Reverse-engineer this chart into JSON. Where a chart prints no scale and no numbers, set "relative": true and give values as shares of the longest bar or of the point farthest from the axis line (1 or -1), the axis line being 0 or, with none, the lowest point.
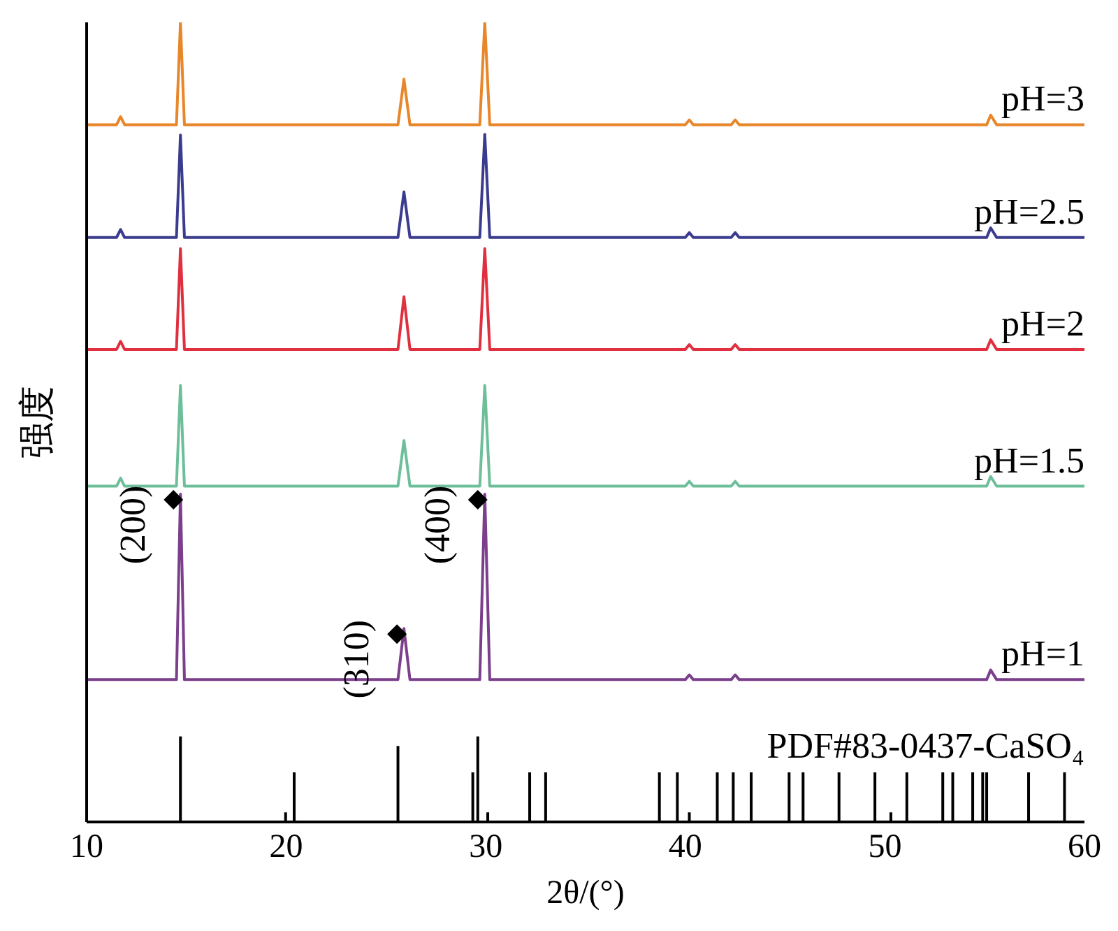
{
  "chart_data": {
    "type": "line",
    "relative": true,
    "xlabel": "2θ/(°)",
    "ylabel": "强度",
    "xlim": [
      10,
      60
    ],
    "xticks": [
      10,
      20,
      30,
      40,
      50,
      60
    ],
    "legend": false,
    "grid": false,
    "marker": "none",
    "line_style": "solid",
    "series": [
      {
        "name": "pH=3",
        "color": "#e8862a",
        "x": [
          10,
          11.5,
          11.7,
          11.9,
          14.5,
          14.7,
          14.9,
          25.6,
          25.9,
          26.2,
          29.7,
          29.95,
          30.2,
          40,
          40.2,
          40.4,
          42.3,
          42.5,
          42.7,
          55.1,
          55.3,
          55.6,
          60
        ],
        "values": [
          0.872,
          0.872,
          0.882,
          0.872,
          0.872,
          1,
          0.872,
          0.872,
          0.929,
          0.872,
          0.872,
          1,
          0.872,
          0.872,
          0.878,
          0.872,
          0.872,
          0.878,
          0.872,
          0.872,
          0.884,
          0.872,
          0.872
        ]
      },
      {
        "name": "pH=2.5",
        "color": "#3b3b8f",
        "x": [
          10,
          11.5,
          11.7,
          11.9,
          14.5,
          14.7,
          14.9,
          25.6,
          25.9,
          26.2,
          29.7,
          29.95,
          30.2,
          40,
          40.2,
          40.4,
          42.3,
          42.5,
          42.7,
          55.1,
          55.3,
          55.6,
          60
        ],
        "values": [
          0.731,
          0.731,
          0.741,
          0.731,
          0.731,
          0.859,
          0.731,
          0.731,
          0.788,
          0.731,
          0.731,
          0.86,
          0.731,
          0.731,
          0.737,
          0.731,
          0.731,
          0.737,
          0.731,
          0.731,
          0.743,
          0.731,
          0.731
        ]
      },
      {
        "name": "pH=2",
        "color": "#e0303f",
        "x": [
          10,
          11.5,
          11.7,
          11.9,
          14.5,
          14.7,
          14.9,
          25.6,
          25.9,
          26.2,
          29.7,
          29.95,
          30.2,
          40,
          40.2,
          40.4,
          42.3,
          42.5,
          42.7,
          55.1,
          55.3,
          55.6,
          60
        ],
        "values": [
          0.591,
          0.591,
          0.601,
          0.591,
          0.591,
          0.717,
          0.591,
          0.591,
          0.657,
          0.591,
          0.591,
          0.717,
          0.591,
          0.591,
          0.597,
          0.591,
          0.591,
          0.597,
          0.591,
          0.591,
          0.603,
          0.591,
          0.591
        ]
      },
      {
        "name": "pH=1.5",
        "color": "#6dbf9a",
        "x": [
          10,
          11.5,
          11.7,
          11.9,
          14.5,
          14.7,
          14.9,
          25.6,
          25.9,
          26.2,
          29.7,
          29.95,
          30.2,
          40,
          40.2,
          40.4,
          42.3,
          42.5,
          42.7,
          55.1,
          55.3,
          55.6,
          60
        ],
        "values": [
          0.42,
          0.42,
          0.43,
          0.42,
          0.42,
          0.546,
          0.42,
          0.42,
          0.477,
          0.42,
          0.42,
          0.546,
          0.42,
          0.42,
          0.426,
          0.42,
          0.42,
          0.426,
          0.42,
          0.42,
          0.432,
          0.42,
          0.42
        ]
      },
      {
        "name": "pH=1",
        "color": "#7b3f8c",
        "x": [
          10,
          11.5,
          11.7,
          11.9,
          14.5,
          14.7,
          14.9,
          25.6,
          25.9,
          26.2,
          29.7,
          29.95,
          30.2,
          40,
          40.2,
          40.4,
          42.3,
          42.5,
          42.7,
          55.1,
          55.3,
          55.6,
          60
        ],
        "values": [
          0.178,
          0.178,
          0.178,
          0.178,
          0.178,
          0.41,
          0.178,
          0.178,
          0.242,
          0.178,
          0.178,
          0.41,
          0.178,
          0.178,
          0.184,
          0.178,
          0.178,
          0.184,
          0.178,
          0.178,
          0.19,
          0.178,
          0.178
        ]
      },
      {
        "name": "PDF#83-0437-CaSO₄",
        "type": "bar",
        "color": "#000000",
        "x": [
          14.7,
          19.97,
          20.4,
          25.6,
          29.35,
          29.6,
          30.1,
          32.2,
          33.0,
          38.7,
          39.6,
          40.2,
          41.6,
          42.4,
          43.3,
          45.2,
          45.9,
          47.7,
          49.5,
          50.3,
          51.1,
          52.9,
          53.4,
          54.4,
          54.9,
          55.1,
          57.2,
          59.0
        ],
        "values": [
          0.107,
          0.012,
          0.062,
          0.095,
          0.062,
          0.107,
          0.012,
          0.062,
          0.062,
          0.062,
          0.062,
          0.012,
          0.062,
          0.062,
          0.062,
          0.062,
          0.062,
          0.062,
          0.062,
          0.012,
          0.062,
          0.062,
          0.062,
          0.062,
          0.062,
          0.062,
          0.062,
          0.062
        ]
      }
    ],
    "annotations": [
      {
        "text": "(200)",
        "x": 14.7,
        "y": 0.41
      },
      {
        "text": "(310)",
        "x": 25.9,
        "y": 0.242
      },
      {
        "text": "(400)",
        "x": 29.95,
        "y": 0.41
      }
    ]
  }
}
